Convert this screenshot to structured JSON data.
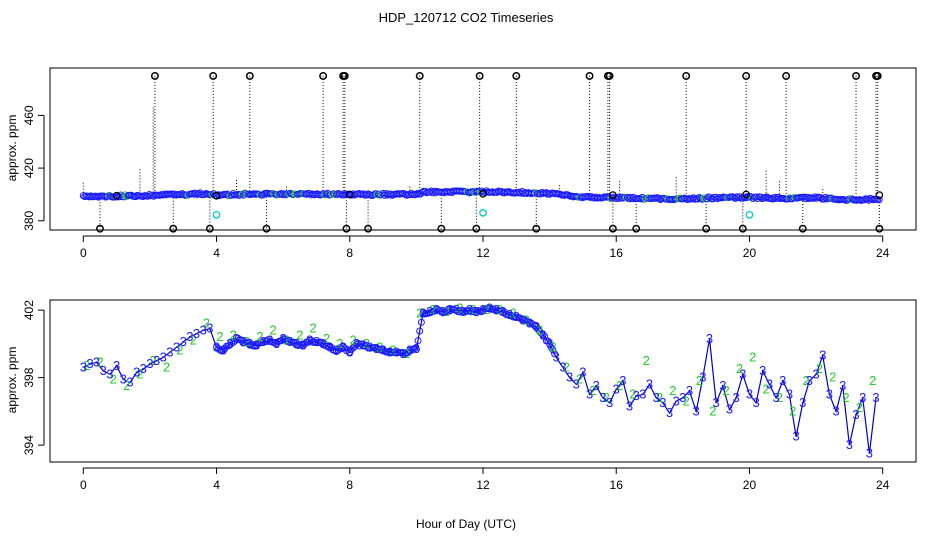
{
  "figure": {
    "title": "HDP_120712  CO2 Timeseries",
    "xlabel": "Hour of Day (UTC)"
  },
  "colors": {
    "axis": "#000000",
    "outlier": "#000000",
    "series_blue": "#1a1aff",
    "series_line": "#0000cc",
    "series_green": "#22cc22",
    "series_cyan": "#00cccc"
  },
  "chart_data": [
    {
      "type": "scatter",
      "panel": "top",
      "ylabel": "approx. ppm",
      "xlim": [
        -1,
        25
      ],
      "ylim": [
        373,
        496
      ],
      "xticks": [
        0,
        4,
        8,
        12,
        16,
        20,
        24
      ],
      "xtick_labels": [
        "0",
        "4",
        "8",
        "12",
        "16",
        "20",
        "24"
      ],
      "yticks": [
        380,
        420,
        460
      ],
      "ytick_labels": [
        "380",
        "420",
        "460"
      ],
      "baseline": [
        [
          0,
          398.5
        ],
        [
          1,
          398.8
        ],
        [
          2,
          399.3
        ],
        [
          3,
          400.0
        ],
        [
          3.5,
          400.5
        ],
        [
          4,
          399.6
        ],
        [
          5,
          400.2
        ],
        [
          6,
          400.3
        ],
        [
          7,
          400.2
        ],
        [
          8,
          400.1
        ],
        [
          9,
          400.0
        ],
        [
          10,
          400.1
        ],
        [
          10.2,
          401.8
        ],
        [
          11,
          402.0
        ],
        [
          12,
          402.0
        ],
        [
          13,
          401.8
        ],
        [
          14,
          400.5
        ],
        [
          15,
          398.0
        ],
        [
          16,
          397.5
        ],
        [
          17,
          397.0
        ],
        [
          18,
          396.5
        ],
        [
          19,
          397.5
        ],
        [
          20,
          397.8
        ],
        [
          21,
          397.0
        ],
        [
          22,
          397.5
        ],
        [
          23,
          396.0
        ],
        [
          23.8,
          396.5
        ]
      ],
      "high_outliers": [
        2.15,
        3.9,
        5.0,
        7.2,
        7.8,
        7.85,
        10.1,
        11.9,
        13.0,
        15.2,
        15.75,
        15.8,
        18.1,
        19.9,
        21.1,
        23.2,
        23.8,
        23.85
      ],
      "high_outlier_value": 490,
      "low_outliers": [
        0.5,
        2.7,
        3.8,
        5.5,
        7.9,
        8.55,
        10.75,
        11.8,
        13.6,
        15.9,
        16.6,
        18.7,
        19.8,
        21.6,
        23.9
      ],
      "low_outlier_value": 374,
      "mid_markers": [
        [
          4.0,
          399.0
        ],
        [
          15.9,
          399.5
        ],
        [
          19.9,
          400.0
        ],
        [
          23.9,
          399.5
        ],
        [
          8.0,
          400.0
        ],
        [
          1.0,
          399.0
        ],
        [
          12.0,
          400.5
        ]
      ],
      "cyan_markers": [
        [
          4.0,
          384.5
        ],
        [
          12.0,
          386.0
        ],
        [
          20.0,
          384.5
        ]
      ],
      "spikes": [
        [
          0.0,
          409
        ],
        [
          1.7,
          419
        ],
        [
          2.1,
          466
        ],
        [
          4.6,
          411
        ],
        [
          6.1,
          406
        ],
        [
          9.8,
          406
        ],
        [
          14.3,
          407
        ],
        [
          16.1,
          410
        ],
        [
          17.8,
          413
        ],
        [
          20.5,
          418
        ],
        [
          20.9,
          410
        ],
        [
          22.2,
          404
        ]
      ]
    },
    {
      "type": "line",
      "panel": "bottom",
      "ylabel": "approx. ppm",
      "xlim": [
        -1,
        25
      ],
      "ylim": [
        393,
        402.6
      ],
      "xticks": [
        0,
        4,
        8,
        12,
        16,
        20,
        24
      ],
      "xtick_labels": [
        "0",
        "4",
        "8",
        "12",
        "16",
        "20",
        "24"
      ],
      "yticks": [
        394,
        398,
        402
      ],
      "ytick_labels": [
        "394",
        "398",
        "402"
      ],
      "marker_labels": [
        "2",
        "3"
      ],
      "series": [
        {
          "name": "3",
          "x": [
            0.0,
            0.2,
            0.4,
            0.6,
            0.8,
            1.0,
            1.2,
            1.4,
            1.6,
            1.8,
            2.0,
            2.2,
            2.4,
            2.6,
            2.8,
            3.0,
            3.2,
            3.4,
            3.6,
            3.8,
            4.0,
            4.2,
            4.4,
            4.6,
            4.8,
            5.0,
            5.2,
            5.4,
            5.6,
            5.8,
            6.0,
            6.2,
            6.4,
            6.6,
            6.8,
            7.0,
            7.2,
            7.4,
            7.6,
            7.8,
            8.0,
            8.2,
            8.4,
            8.6,
            8.8,
            9.0,
            9.2,
            9.4,
            9.6,
            9.8,
            10.0,
            10.2,
            10.4,
            10.6,
            10.8,
            11.0,
            11.2,
            11.4,
            11.6,
            11.8,
            12.0,
            12.2,
            12.4,
            12.6,
            12.8,
            13.0,
            13.2,
            13.4,
            13.6,
            13.8,
            14.0,
            14.2,
            14.4,
            14.6,
            14.8,
            15.0,
            15.2,
            15.4,
            15.6,
            15.8,
            16.0,
            16.2,
            16.4,
            16.6,
            16.8,
            17.0,
            17.2,
            17.4,
            17.6,
            17.8,
            18.0,
            18.2,
            18.4,
            18.6,
            18.8,
            19.0,
            19.2,
            19.4,
            19.6,
            19.8,
            20.0,
            20.2,
            20.4,
            20.6,
            20.8,
            21.0,
            21.2,
            21.4,
            21.6,
            21.8,
            22.0,
            22.2,
            22.4,
            22.6,
            22.8,
            23.0,
            23.2,
            23.4,
            23.6,
            23.8
          ],
          "values": [
            398.6,
            398.8,
            398.9,
            398.4,
            398.2,
            398.7,
            397.9,
            397.7,
            398.3,
            398.5,
            398.8,
            399.0,
            399.2,
            399.5,
            399.8,
            400.1,
            400.4,
            400.6,
            400.8,
            400.9,
            399.8,
            399.6,
            400.0,
            400.3,
            400.1,
            400.0,
            399.9,
            400.1,
            400.2,
            400.0,
            400.3,
            400.1,
            400.0,
            399.9,
            400.2,
            400.1,
            400.0,
            399.8,
            399.6,
            399.8,
            399.5,
            400.0,
            399.9,
            399.8,
            399.7,
            399.6,
            399.5,
            399.5,
            399.4,
            399.6,
            399.7,
            401.8,
            401.9,
            402.0,
            401.9,
            402.0,
            402.0,
            401.9,
            402.0,
            401.9,
            402.0,
            402.1,
            402.0,
            401.9,
            401.7,
            401.6,
            401.4,
            401.2,
            401.0,
            400.5,
            400.0,
            399.2,
            398.6,
            398.0,
            397.6,
            398.3,
            397.0,
            397.5,
            396.8,
            396.5,
            397.3,
            397.8,
            396.3,
            396.9,
            397.0,
            397.6,
            396.8,
            396.5,
            395.9,
            396.6,
            396.8,
            397.2,
            396.0,
            398.0,
            400.3,
            396.5,
            397.5,
            396.1,
            396.8,
            398.2,
            397.0,
            396.5,
            398.4,
            397.6,
            396.8,
            397.8,
            397.0,
            394.5,
            396.5,
            397.8,
            398.2,
            399.3,
            397.0,
            396.0,
            397.5,
            394.0,
            395.8,
            396.8,
            393.5,
            396.8
          ],
          "color": "#1a1aff"
        },
        {
          "name": "2",
          "x": [
            0.1,
            0.5,
            0.9,
            1.3,
            1.7,
            2.1,
            2.5,
            2.9,
            3.3,
            3.7,
            4.1,
            4.5,
            4.9,
            5.3,
            5.7,
            6.1,
            6.5,
            6.9,
            7.3,
            7.7,
            8.1,
            8.5,
            8.9,
            9.3,
            9.7,
            10.1,
            10.5,
            10.9,
            11.3,
            11.7,
            12.1,
            12.5,
            12.9,
            13.3,
            13.7,
            14.1,
            14.5,
            14.9,
            15.3,
            15.7,
            16.1,
            16.5,
            16.9,
            17.3,
            17.7,
            18.1,
            18.5,
            18.9,
            19.3,
            19.7,
            20.1,
            20.5,
            20.9,
            21.3,
            21.7,
            22.1,
            22.5,
            22.9,
            23.3,
            23.7
          ],
          "values": [
            398.7,
            398.9,
            397.9,
            397.5,
            398.2,
            399.0,
            398.6,
            399.6,
            400.2,
            401.2,
            400.4,
            400.5,
            400.1,
            400.4,
            400.8,
            400.2,
            400.5,
            400.9,
            400.3,
            400.0,
            400.2,
            400.0,
            399.8,
            399.6,
            399.4,
            401.8,
            402.0,
            401.9,
            402.1,
            402.0,
            402.0,
            402.0,
            401.8,
            401.4,
            400.8,
            399.8,
            398.6,
            397.9,
            397.2,
            396.8,
            397.5,
            397.0,
            399.0,
            396.8,
            397.2,
            396.6,
            397.8,
            396.0,
            397.2,
            398.5,
            399.2,
            397.3,
            396.8,
            396.0,
            397.8,
            398.5,
            398.0,
            396.8,
            396.2,
            397.8
          ],
          "color": "#22cc22"
        }
      ]
    }
  ]
}
